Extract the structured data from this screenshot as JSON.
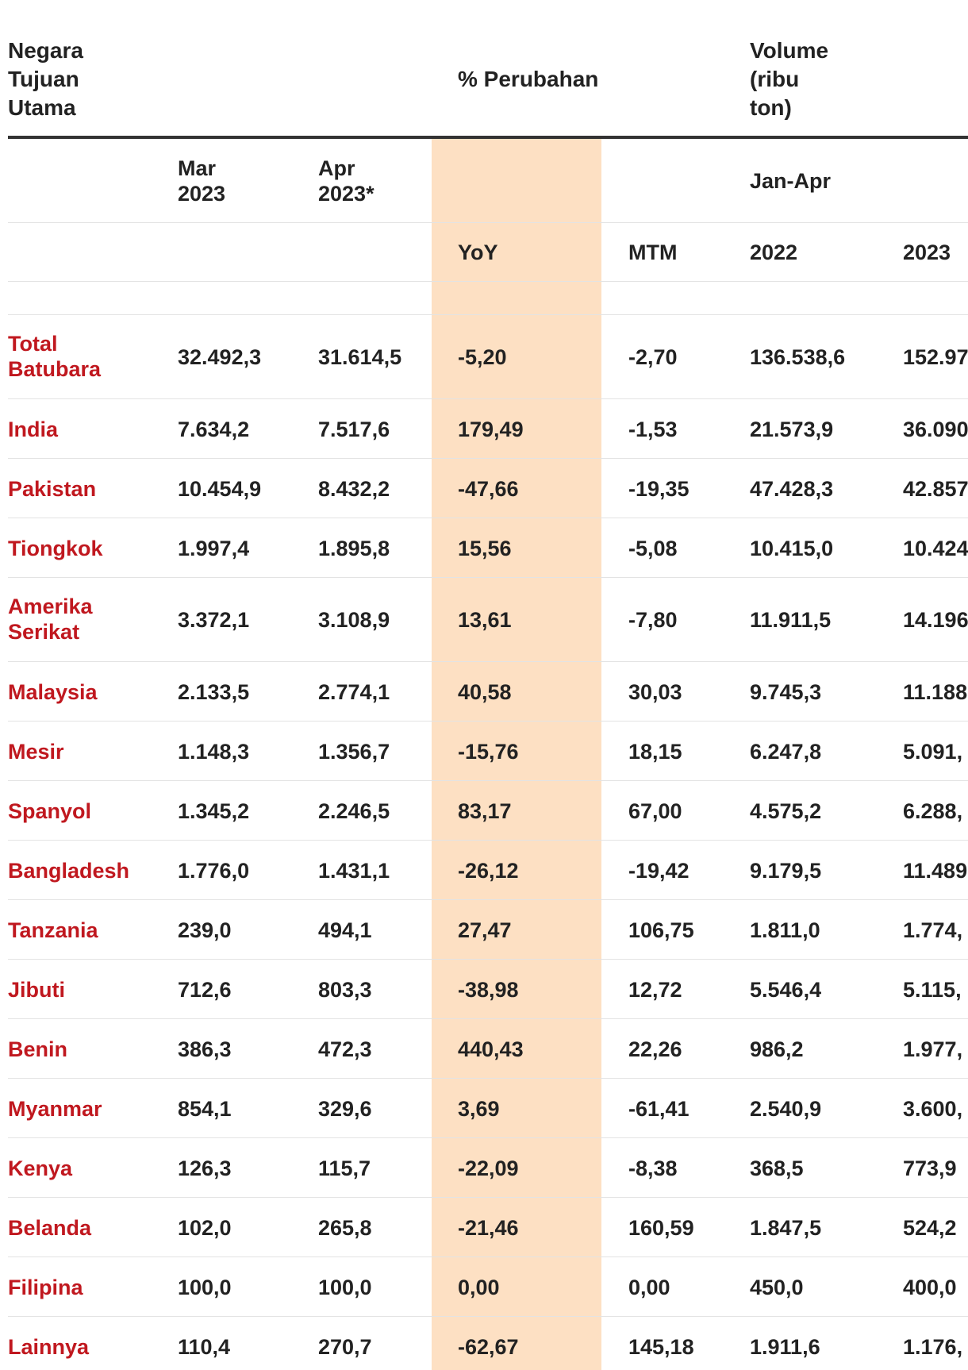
{
  "header": {
    "col_country": "Negara Tujuan Utama",
    "col_change": "% Perubahan",
    "col_volume": "Volume (ribu ton)"
  },
  "subheader": {
    "mar": "Mar 2023",
    "apr": "Apr 2023*",
    "janapr": "Jan-Apr",
    "yoy": "YoY",
    "mtm": "MTM",
    "y2022": "2022",
    "y2023": "2023"
  },
  "rows": [
    {
      "country": "Total Batubara",
      "mar": "32.492,3",
      "apr": "31.614,5",
      "yoy": "-5,20",
      "mtm": "-2,70",
      "v2022": "136.538,6",
      "v2023": "152.97"
    },
    {
      "country": "India",
      "mar": "7.634,2",
      "apr": "7.517,6",
      "yoy": "179,49",
      "mtm": "-1,53",
      "v2022": "21.573,9",
      "v2023": "36.090"
    },
    {
      "country": "Pakistan",
      "mar": "10.454,9",
      "apr": "8.432,2",
      "yoy": "-47,66",
      "mtm": "-19,35",
      "v2022": "47.428,3",
      "v2023": "42.857"
    },
    {
      "country": "Tiongkok",
      "mar": "1.997,4",
      "apr": "1.895,8",
      "yoy": "15,56",
      "mtm": "-5,08",
      "v2022": "10.415,0",
      "v2023": "10.424"
    },
    {
      "country": "Amerika Serikat",
      "mar": "3.372,1",
      "apr": "3.108,9",
      "yoy": "13,61",
      "mtm": "-7,80",
      "v2022": "11.911,5",
      "v2023": "14.196"
    },
    {
      "country": "Malaysia",
      "mar": "2.133,5",
      "apr": "2.774,1",
      "yoy": "40,58",
      "mtm": "30,03",
      "v2022": "9.745,3",
      "v2023": "11.188"
    },
    {
      "country": "Mesir",
      "mar": "1.148,3",
      "apr": "1.356,7",
      "yoy": "-15,76",
      "mtm": "18,15",
      "v2022": "6.247,8",
      "v2023": "5.091,"
    },
    {
      "country": "Spanyol",
      "mar": "1.345,2",
      "apr": "2.246,5",
      "yoy": "83,17",
      "mtm": "67,00",
      "v2022": "4.575,2",
      "v2023": "6.288,"
    },
    {
      "country": "Bangladesh",
      "mar": "1.776,0",
      "apr": "1.431,1",
      "yoy": "-26,12",
      "mtm": "-19,42",
      "v2022": "9.179,5",
      "v2023": "11.489"
    },
    {
      "country": "Tanzania",
      "mar": "239,0",
      "apr": "494,1",
      "yoy": "27,47",
      "mtm": "106,75",
      "v2022": "1.811,0",
      "v2023": "1.774,"
    },
    {
      "country": "Jibuti",
      "mar": "712,6",
      "apr": "803,3",
      "yoy": "-38,98",
      "mtm": "12,72",
      "v2022": "5.546,4",
      "v2023": "5.115,"
    },
    {
      "country": "Benin",
      "mar": "386,3",
      "apr": "472,3",
      "yoy": "440,43",
      "mtm": "22,26",
      "v2022": "986,2",
      "v2023": "1.977,"
    },
    {
      "country": "Myanmar",
      "mar": "854,1",
      "apr": "329,6",
      "yoy": "3,69",
      "mtm": "-61,41",
      "v2022": "2.540,9",
      "v2023": "3.600,"
    },
    {
      "country": "Kenya",
      "mar": "126,3",
      "apr": "115,7",
      "yoy": "-22,09",
      "mtm": "-8,38",
      "v2022": "368,5",
      "v2023": "773,9"
    },
    {
      "country": "Belanda",
      "mar": "102,0",
      "apr": "265,8",
      "yoy": "-21,46",
      "mtm": "160,59",
      "v2022": "1.847,5",
      "v2023": "524,2"
    },
    {
      "country": "Filipina",
      "mar": "100,0",
      "apr": "100,0",
      "yoy": "0,00",
      "mtm": "0,00",
      "v2022": "450,0",
      "v2023": "400,0"
    },
    {
      "country": "Lainnya",
      "mar": "110,4",
      "apr": "270,7",
      "yoy": "-62,67",
      "mtm": "145,18",
      "v2022": "1.911,6",
      "v2023": "1.176,"
    }
  ]
}
